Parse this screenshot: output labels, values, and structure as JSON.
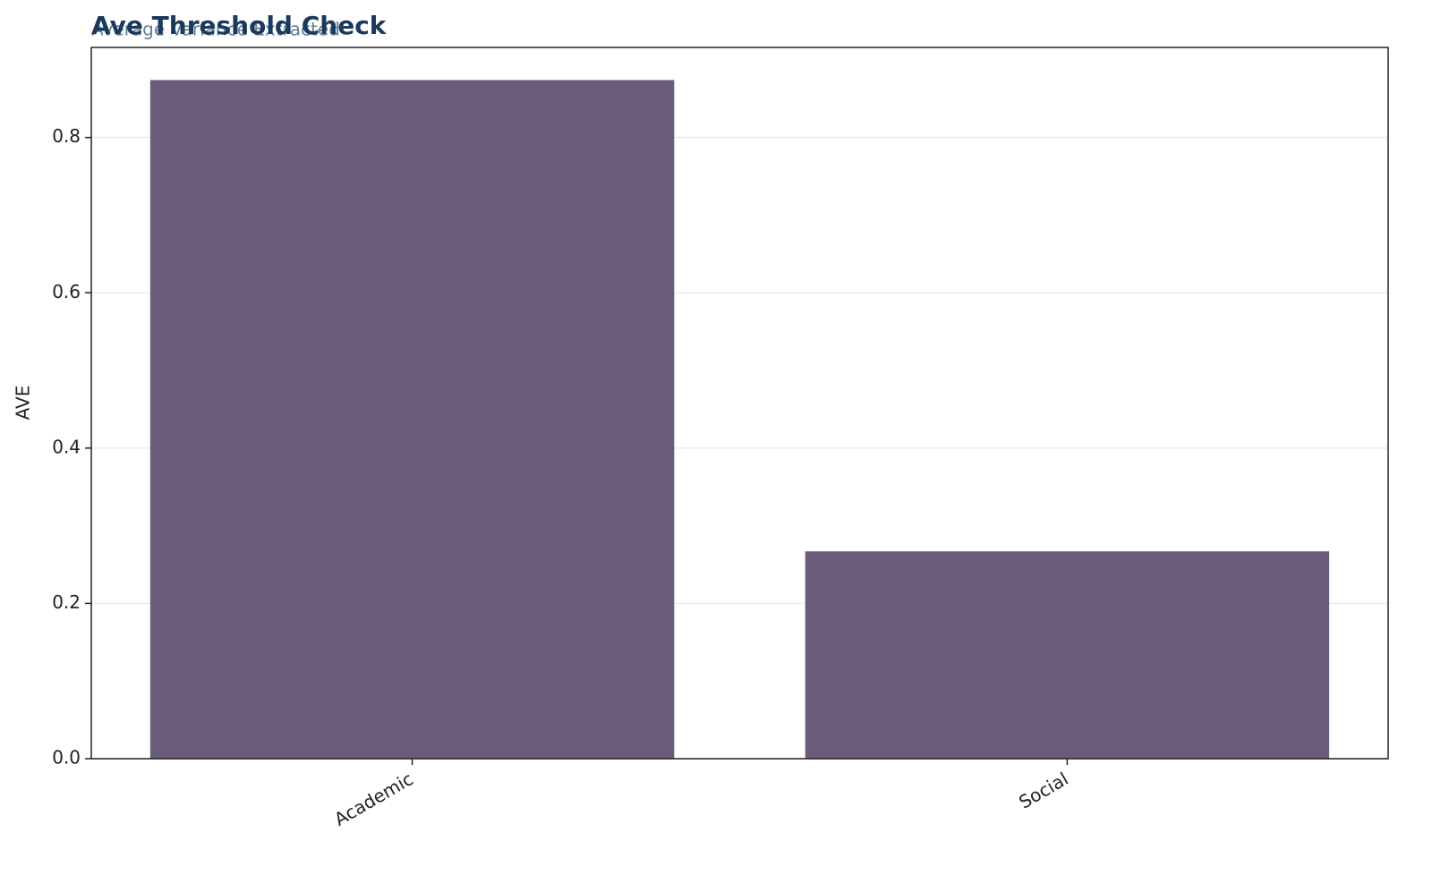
{
  "chart_data": {
    "type": "bar",
    "title": "Ave Threshold Check",
    "subtitle": "Average Variance Extracted",
    "y_label": "AVE",
    "categories": [
      "Academic",
      "Social"
    ],
    "values": [
      0.874,
      0.267
    ],
    "color": "#6b5b7b",
    "ylim": [
      0,
      0.916
    ],
    "yticks": [
      {
        "value": 0,
        "label": "0.0"
      },
      0.2,
      0.4,
      0.6,
      0.8
    ],
    "grid": true
  }
}
